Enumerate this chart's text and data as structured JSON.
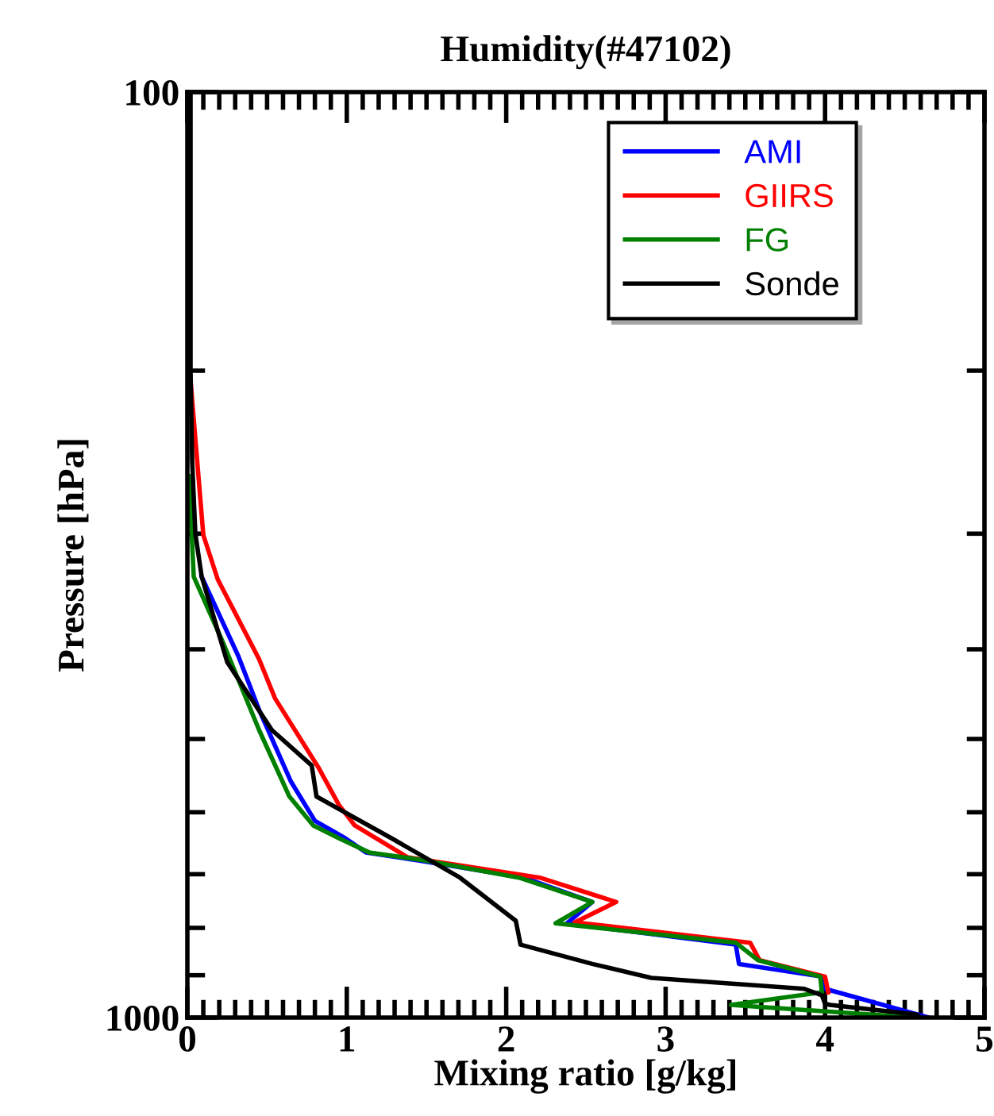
{
  "chart_data": {
    "type": "line",
    "title": "Humidity(#47102)",
    "xlabel": "Mixing ratio [g/kg]",
    "ylabel": "Pressure [hPa]",
    "log": "y",
    "xlim": [
      0,
      5
    ],
    "ylim": [
      1000,
      100
    ],
    "xticks": [
      0,
      {
        "value": 0.1,
        "label": null
      },
      {
        "value": 0.2,
        "label": null
      },
      {
        "value": 0.3,
        "label": null
      },
      {
        "value": 0.4,
        "label": null
      },
      {
        "value": 0.5,
        "label": null
      },
      {
        "value": 0.6,
        "label": null
      },
      {
        "value": 0.7,
        "label": null
      },
      {
        "value": 0.8,
        "label": null
      },
      {
        "value": 0.9,
        "label": null
      },
      1,
      {
        "value": 1.1,
        "label": null
      },
      {
        "value": 1.2,
        "label": null
      },
      {
        "value": 1.3,
        "label": null
      },
      {
        "value": 1.4,
        "label": null
      },
      {
        "value": 1.5,
        "label": null
      },
      {
        "value": 1.6,
        "label": null
      },
      {
        "value": 1.7,
        "label": null
      },
      {
        "value": 1.8,
        "label": null
      },
      {
        "value": 1.9,
        "label": null
      },
      2,
      {
        "value": 2.1,
        "label": null
      },
      {
        "value": 2.2,
        "label": null
      },
      {
        "value": 2.3,
        "label": null
      },
      {
        "value": 2.4,
        "label": null
      },
      {
        "value": 2.5,
        "label": null
      },
      {
        "value": 2.6,
        "label": null
      },
      {
        "value": 2.7,
        "label": null
      },
      {
        "value": 2.8,
        "label": null
      },
      {
        "value": 2.9,
        "label": null
      },
      3,
      {
        "value": 3.1,
        "label": null
      },
      {
        "value": 3.2,
        "label": null
      },
      {
        "value": 3.3,
        "label": null
      },
      {
        "value": 3.4,
        "label": null
      },
      {
        "value": 3.5,
        "label": null
      },
      {
        "value": 3.6,
        "label": null
      },
      {
        "value": 3.7,
        "label": null
      },
      {
        "value": 3.8,
        "label": null
      },
      {
        "value": 3.9,
        "label": null
      },
      4,
      {
        "value": 4.1,
        "label": null
      },
      {
        "value": 4.2,
        "label": null
      },
      {
        "value": 4.3,
        "label": null
      },
      {
        "value": 4.4,
        "label": null
      },
      {
        "value": 4.5,
        "label": null
      },
      {
        "value": 4.6,
        "label": null
      },
      {
        "value": 4.7,
        "label": null
      },
      {
        "value": 4.8,
        "label": null
      },
      {
        "value": 4.9,
        "label": null
      },
      5
    ],
    "yticks": [
      100,
      {
        "value": 200,
        "label": null
      },
      {
        "value": 300,
        "label": null
      },
      {
        "value": 400,
        "label": null
      },
      {
        "value": 500,
        "label": null
      },
      {
        "value": 600,
        "label": null
      },
      {
        "value": 700,
        "label": null
      },
      {
        "value": 800,
        "label": null
      },
      {
        "value": 900,
        "label": null
      },
      1000
    ],
    "grid": false,
    "legend": "top right",
    "line_style": "solid",
    "marker": "none",
    "series": [
      {
        "name": "AMI",
        "color": "#0000ff",
        "x": [
          null,
          null,
          0.09,
          0.32,
          0.45,
          0.65,
          0.8,
          0.99,
          1.12,
          1.44,
          2.11,
          2.54,
          2.38,
          3.44,
          3.46,
          3.98,
          4.0,
          4.65
        ],
        "values": [
          null,
          null,
          334,
          407,
          465,
          556,
          613,
          640,
          663,
          676,
          706,
          750,
          791,
          834,
          875,
          903,
          931,
          1000
        ]
      },
      {
        "name": "GIIRS",
        "color": "#ff0000",
        "x": [
          0.02,
          0.1,
          0.19,
          0.45,
          0.55,
          0.82,
          0.95,
          1.05,
          1.38,
          2.21,
          2.69,
          2.43,
          3.53,
          3.59,
          4.0,
          4.02,
          null
        ],
        "values": [
          205,
          301,
          336,
          410,
          452,
          536,
          589,
          620,
          671,
          706,
          750,
          789,
          830,
          867,
          903,
          939,
          null
        ]
      },
      {
        "name": "FG",
        "color": "#008000",
        "x": [
          0.01,
          0.04,
          0.22,
          0.45,
          0.64,
          0.79,
          0.95,
          1.14,
          1.48,
          2.08,
          2.54,
          2.31,
          3.44,
          3.58,
          3.97,
          3.98,
          3.41,
          4.57
        ],
        "values": [
          260,
          334,
          392,
          489,
          577,
          620,
          640,
          663,
          676,
          706,
          750,
          791,
          830,
          867,
          903,
          939,
          969,
          1000
        ]
      },
      {
        "name": "Sonde",
        "color": "#000000",
        "x": [
          0.02,
          0.02,
          0.03,
          0.05,
          0.09,
          0.25,
          0.53,
          0.78,
          0.81,
          1.28,
          1.71,
          2.06,
          2.09,
          2.54,
          2.91,
          3.87,
          3.98,
          4.0,
          4.03,
          4.57,
          4.6
        ],
        "values": [
          100,
          200,
          250,
          300,
          334,
          413,
          489,
          534,
          577,
          640,
          706,
          786,
          834,
          875,
          906,
          931,
          946,
          966,
          969,
          992,
          1000
        ]
      }
    ]
  }
}
